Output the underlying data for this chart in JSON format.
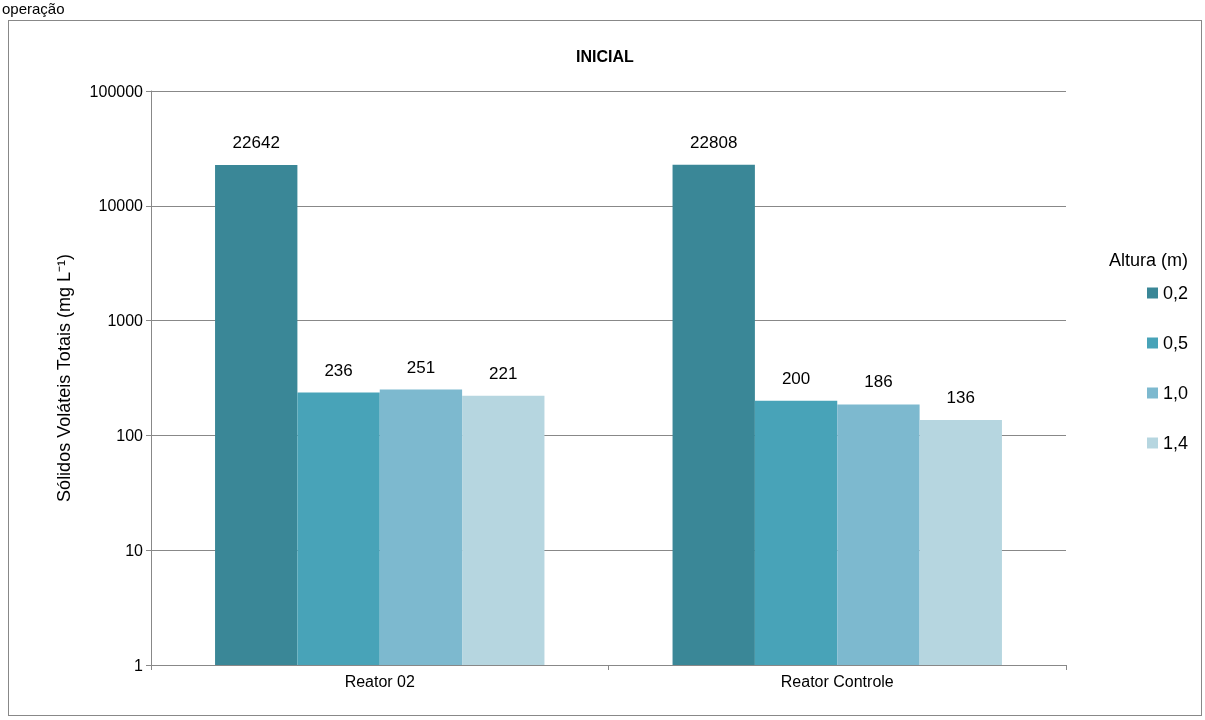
{
  "chart_data": {
    "type": "bar",
    "title": "INICIAL",
    "ylabel": "Sólidos Voláteis Totais (mg L⁻¹)",
    "legend_title": "Altura (m)",
    "annotations": [
      "operação"
    ],
    "categories": [
      "Reator 02",
      "Reator Controle"
    ],
    "series": [
      {
        "name": "0,2",
        "color": "#3a8797",
        "values": [
          22642,
          22808
        ]
      },
      {
        "name": "0,5",
        "color": "#48a3b8",
        "values": [
          236,
          200
        ]
      },
      {
        "name": "1,0",
        "color": "#7db9cf",
        "values": [
          251,
          186
        ]
      },
      {
        "name": "1,4",
        "color": "#b6d6e0",
        "values": [
          221,
          136
        ]
      }
    ],
    "log": "y",
    "ylim": [
      1,
      100000
    ],
    "yticks": [
      1,
      10,
      100,
      1000,
      10000,
      100000
    ],
    "grid": "y",
    "legend": "right",
    "data_labels": true
  }
}
